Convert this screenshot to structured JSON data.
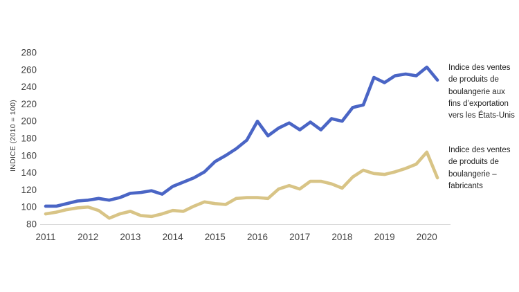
{
  "page": {
    "background": "#ffffff"
  },
  "chart": {
    "annotations": [
      {
        "text": "Indice des ventes\nde produits de\nboulangerie aux\nfins d’exportation\nvers les États-Unis",
        "color": "#262626"
      },
      {
        "text": "Indice des ventes\nde produits de\nboulangerie –\nfabricants",
        "color": "#262626"
      }
    ]
  },
  "chart_data": {
    "type": "line",
    "title": "",
    "xlabel": "",
    "ylabel": "INDICE (2010 = 100)",
    "ylim": [
      80,
      280
    ],
    "yticks": [
      80,
      100,
      120,
      140,
      160,
      180,
      200,
      220,
      240,
      260,
      280
    ],
    "x_tick_labels": [
      "2011",
      "2012",
      "2013",
      "2014",
      "2015",
      "2016",
      "2017",
      "2018",
      "2019",
      "2020"
    ],
    "x_frequency": "quarterly",
    "grid": false,
    "legend_position": "right-side-text-annotations",
    "axis_line_color": "#d9d9d9",
    "tick_label_color": "#404040",
    "x": [
      "2011Q1",
      "2011Q2",
      "2011Q3",
      "2011Q4",
      "2012Q1",
      "2012Q2",
      "2012Q3",
      "2012Q4",
      "2013Q1",
      "2013Q2",
      "2013Q3",
      "2013Q4",
      "2014Q1",
      "2014Q2",
      "2014Q3",
      "2014Q4",
      "2015Q1",
      "2015Q2",
      "2015Q3",
      "2015Q4",
      "2016Q1",
      "2016Q2",
      "2016Q3",
      "2016Q4",
      "2017Q1",
      "2017Q2",
      "2017Q3",
      "2017Q4",
      "2018Q1",
      "2018Q2",
      "2018Q3",
      "2018Q4",
      "2019Q1",
      "2019Q2",
      "2019Q3",
      "2019Q4",
      "2020Q1",
      "2020Q2"
    ],
    "series": [
      {
        "name": "Indice des ventes de produits de boulangerie aux fins d’exportation vers les États-Unis",
        "key": "exports",
        "color": "#4a65c5",
        "values": [
          101,
          101,
          104,
          107,
          108,
          110,
          108,
          111,
          116,
          117,
          119,
          115,
          124,
          129,
          134,
          141,
          153,
          160,
          168,
          178,
          200,
          183,
          192,
          198,
          190,
          199,
          190,
          203,
          200,
          216,
          219,
          251,
          245,
          253,
          255,
          253,
          263,
          248
        ]
      },
      {
        "name": "Indice des ventes de produits de boulangerie – fabricants",
        "key": "manufacturers",
        "color": "#d8c486",
        "values": [
          92,
          94,
          97,
          99,
          100,
          96,
          87,
          92,
          95,
          90,
          89,
          92,
          96,
          95,
          101,
          106,
          104,
          103,
          110,
          111,
          111,
          110,
          121,
          125,
          121,
          130,
          130,
          127,
          122,
          135,
          143,
          139,
          138,
          141,
          145,
          150,
          164,
          134
        ]
      }
    ]
  }
}
